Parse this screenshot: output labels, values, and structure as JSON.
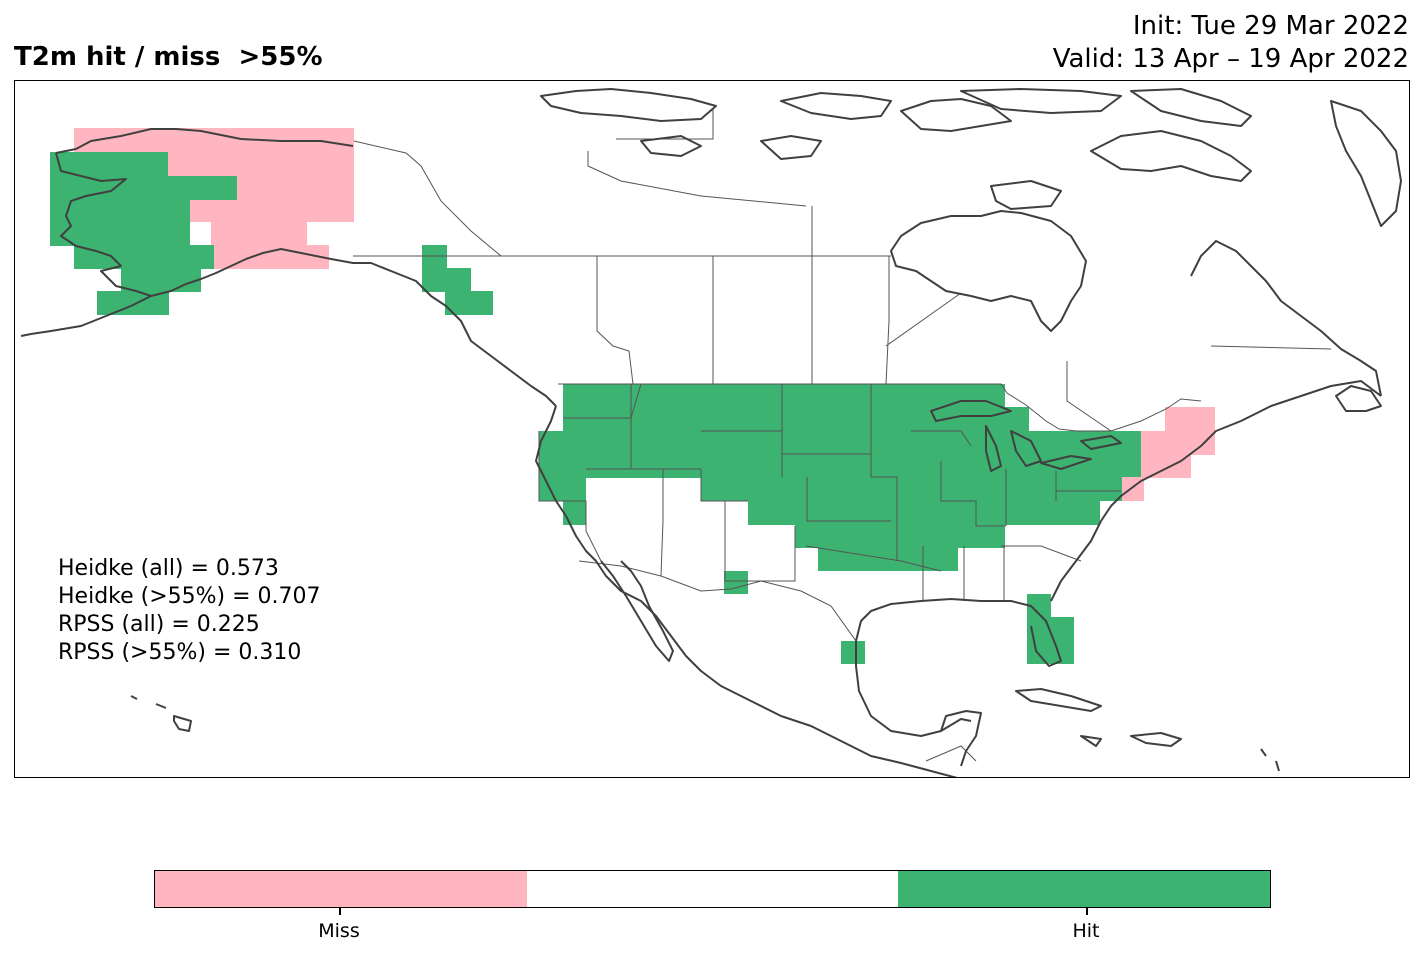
{
  "title": {
    "left": "T2m hit / miss  >55%",
    "init": "Init: Tue 29 Mar 2022",
    "valid": "Valid: 13 Apr – 19 Apr 2022"
  },
  "scores": [
    "Heidke (all) = 0.573",
    "Heidke (>55%) = 0.707",
    "RPSS (all) = 0.225",
    "RPSS (>55%) = 0.310"
  ],
  "legend": {
    "categories": [
      {
        "label": "Miss",
        "color": "#ffb6c1"
      },
      {
        "label": "",
        "color": "#ffffff"
      },
      {
        "label": "Hit",
        "color": "#3cb371"
      }
    ],
    "tick_labels": [
      "Miss",
      "Hit"
    ]
  },
  "colors": {
    "hit": "#3cb371",
    "miss": "#ffb6c1",
    "coast": "#404040",
    "border": "#555555"
  }
}
